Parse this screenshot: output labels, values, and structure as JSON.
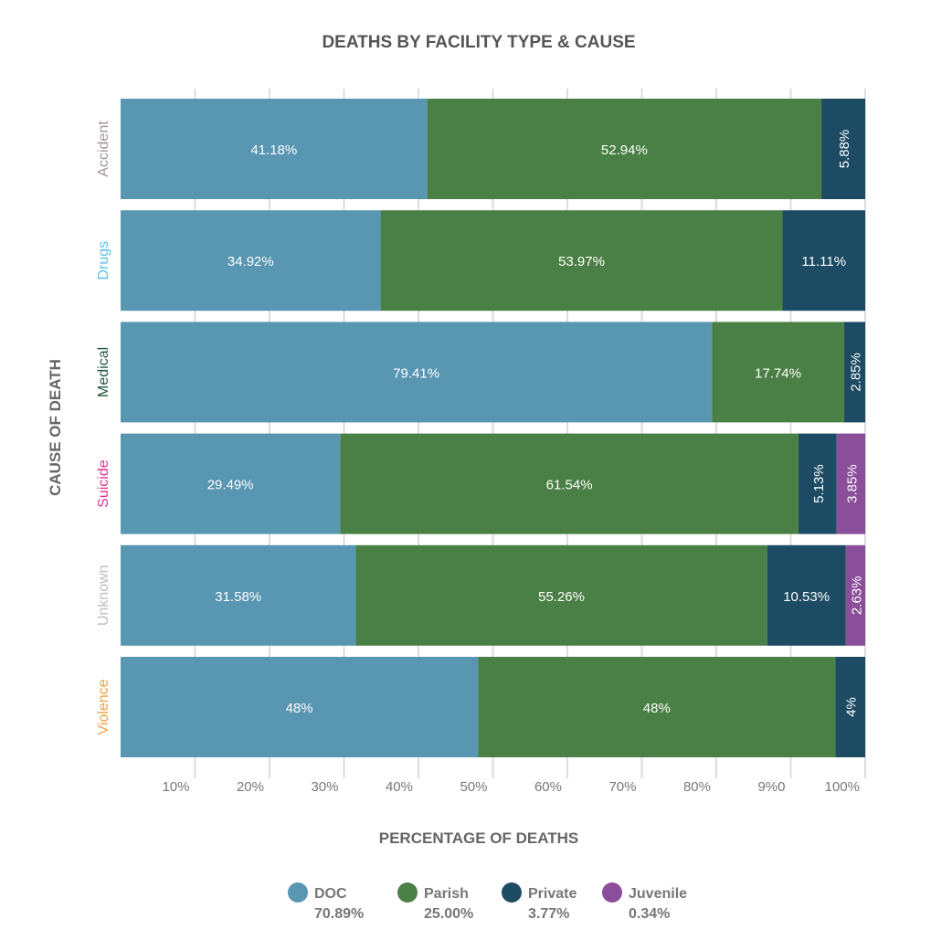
{
  "chart_data": {
    "type": "bar",
    "orientation": "horizontal",
    "stacked": true,
    "title": "DEATHS BY FACILITY TYPE & CAUSE",
    "xlabel": "PERCENTAGE OF DEATHS",
    "ylabel": "CAUSE OF DEATH",
    "xlim": [
      0,
      100
    ],
    "x_tick_labels": [
      "10%",
      "20%",
      "30%",
      "40%",
      "50%",
      "60%",
      "70%",
      "80%",
      "9%0",
      "100%"
    ],
    "grid": true,
    "legend_position": "bottom",
    "categories": [
      "Accident",
      "Drugs",
      "Medical",
      "Suicide",
      "Unknown",
      "Violence"
    ],
    "category_colors": [
      "#a39499",
      "#5cc0ea",
      "#1f5a3b",
      "#e0368c",
      "#bdbdbd",
      "#f2a043"
    ],
    "series": [
      {
        "name": "DOC",
        "color": "#5896b2",
        "total": "70.89%",
        "values": [
          41.18,
          34.92,
          79.41,
          29.49,
          31.58,
          48
        ],
        "labels": [
          "41.18%",
          "34.92%",
          "79.41%",
          "29.49%",
          "31.58%",
          "48%"
        ]
      },
      {
        "name": "Parish",
        "color": "#4a8045",
        "total": "25.00%",
        "values": [
          52.94,
          53.97,
          17.74,
          61.54,
          55.26,
          48
        ],
        "labels": [
          "52.94%",
          "53.97%",
          "17.74%",
          "61.54%",
          "55.26%",
          "48%"
        ]
      },
      {
        "name": "Private",
        "color": "#1d4b63",
        "total": "3.77%",
        "values": [
          5.88,
          11.11,
          2.85,
          5.13,
          10.53,
          4
        ],
        "labels": [
          "5.88%",
          "11.11%",
          "2.85%",
          "5.13%",
          "10.53%",
          "4%"
        ]
      },
      {
        "name": "Juvenile",
        "color": "#8a4e9a",
        "total": "0.34%",
        "values": [
          0,
          0,
          0,
          3.85,
          2.63,
          0
        ],
        "labels": [
          "",
          "",
          "",
          "3.85%",
          "2.63%",
          ""
        ]
      }
    ]
  }
}
